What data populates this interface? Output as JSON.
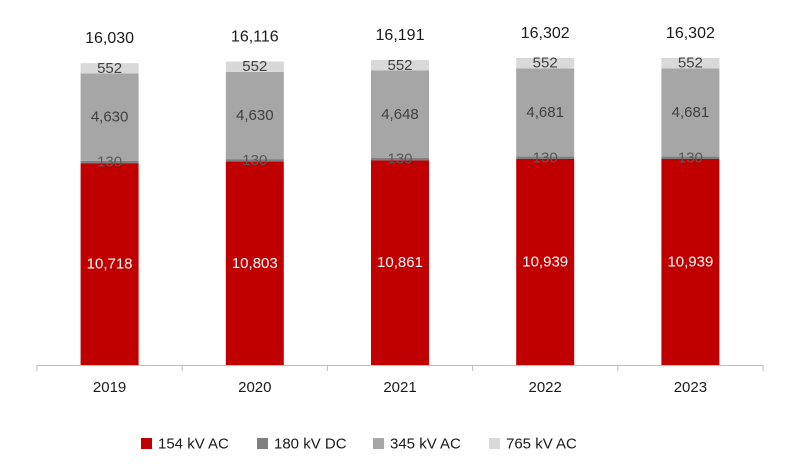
{
  "chart_data": {
    "type": "bar",
    "stacked": true,
    "categories": [
      "2019",
      "2020",
      "2021",
      "2022",
      "2023"
    ],
    "series": [
      {
        "name": "154 kV AC",
        "color": "#c00000",
        "label_color": "#ffffff",
        "values": [
          10718,
          10803,
          10861,
          10939,
          10939
        ],
        "labels": [
          "10,718",
          "10,803",
          "10,861",
          "10,939",
          "10,939"
        ]
      },
      {
        "name": "180 kV DC",
        "color": "#7f7f7f",
        "label_color": "#595959",
        "values": [
          130,
          130,
          130,
          130,
          130
        ],
        "labels": [
          "130",
          "130",
          "130",
          "130",
          "130"
        ]
      },
      {
        "name": "345 kV AC",
        "color": "#a6a6a6",
        "label_color": "#404040",
        "values": [
          4630,
          4630,
          4648,
          4681,
          4681
        ],
        "labels": [
          "4,630",
          "4,630",
          "4,648",
          "4,681",
          "4,681"
        ]
      },
      {
        "name": "765 kV AC",
        "color": "#d9d9d9",
        "label_color": "#404040",
        "values": [
          552,
          552,
          552,
          552,
          552
        ],
        "labels": [
          "552",
          "552",
          "552",
          "552",
          "552"
        ]
      }
    ],
    "totals": [
      "16,030",
      "16,116",
      "16,191",
      "16,302",
      "16,302"
    ],
    "ylim": [
      0,
      16302
    ],
    "grid": false,
    "legend": "bottom",
    "title": "",
    "xlabel": "",
    "ylabel": ""
  }
}
